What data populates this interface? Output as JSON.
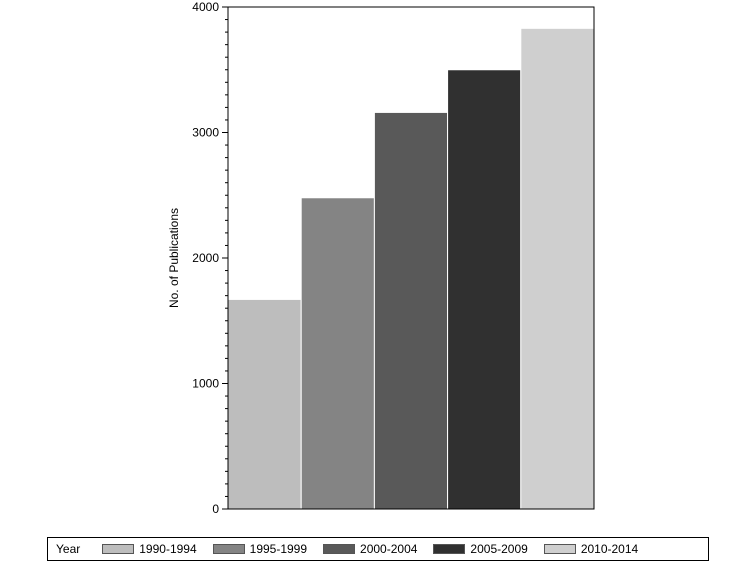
{
  "chart_data": {
    "type": "bar",
    "categories": [
      "1990-1994",
      "1995-1999",
      "2000-2004",
      "2005-2009",
      "2010-2014"
    ],
    "values": [
      1670,
      2480,
      3160,
      3500,
      3830
    ],
    "colors": [
      "#bdbdbd",
      "#848484",
      "#595959",
      "#303030",
      "#cfcfcf"
    ],
    "title": "",
    "xlabel": "",
    "ylabel": "No. of Publications",
    "ylim": [
      0,
      4000
    ],
    "yticks": [
      0,
      1000,
      2000,
      3000,
      4000
    ],
    "grid": false,
    "legend": {
      "title": "Year",
      "position": "bottom"
    }
  }
}
